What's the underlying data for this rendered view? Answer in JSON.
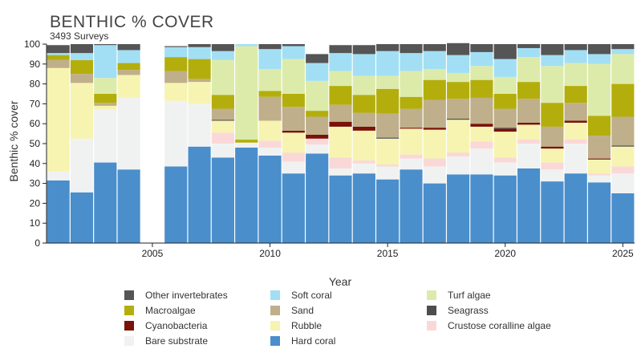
{
  "chart_data": {
    "type": "bar",
    "stacked": true,
    "title": "BENTHIC % COVER",
    "subtitle": "3493 Surveys",
    "xlabel": "Year",
    "ylabel": "Benthic % cover",
    "ylim": [
      0,
      100
    ],
    "xlim": [
      2000.5,
      2025.5
    ],
    "yticks": [
      0,
      10,
      20,
      30,
      40,
      50,
      60,
      70,
      80,
      90,
      100
    ],
    "xticks": [
      2005,
      2010,
      2015,
      2020,
      2025
    ],
    "grid": false,
    "legend_position": "bottom",
    "years": [
      2001,
      2002,
      2003,
      2004,
      2005,
      2006,
      2007,
      2008,
      2009,
      2010,
      2011,
      2012,
      2013,
      2014,
      2015,
      2016,
      2017,
      2018,
      2019,
      2020,
      2021,
      2022,
      2023,
      2024,
      2025
    ],
    "series": [
      {
        "name": "Hard coral",
        "color": "#4A8ECC",
        "values": [
          31.5,
          25.5,
          40.5,
          37,
          0,
          38.5,
          48.5,
          43,
          48,
          44,
          35,
          45,
          34,
          35,
          32,
          37,
          30,
          34.5,
          34.5,
          34,
          37.5,
          31,
          35,
          30.5,
          25
        ]
      },
      {
        "name": "Bare substrate",
        "color": "#F0F2F2",
        "values": [
          4.5,
          27,
          26.5,
          36,
          0,
          33,
          21.5,
          7,
          2.5,
          4,
          6,
          4.5,
          3.5,
          5,
          6.5,
          5.5,
          8.5,
          9,
          13,
          6.5,
          12.5,
          6,
          15,
          3.5,
          10
        ]
      },
      {
        "name": "Crustose coralline algae",
        "color": "#FBD8D8",
        "values": [
          0,
          0,
          0,
          0,
          0,
          0,
          0,
          5.5,
          0,
          3.5,
          4.5,
          3,
          5.5,
          1.5,
          1,
          2,
          4,
          2,
          3.5,
          2.5,
          2,
          3.5,
          2,
          1,
          3.5
        ]
      },
      {
        "name": "Rubble",
        "color": "#F6F4B0",
        "values": [
          52,
          28,
          2,
          11.5,
          0,
          9,
          11,
          6,
          0,
          10,
          10,
          0,
          15.5,
          15,
          13,
          13,
          14.5,
          16.5,
          7.5,
          13,
          7.5,
          7,
          8.5,
          7,
          10
        ]
      },
      {
        "name": "Cyanobacteria",
        "color": "#7A1208",
        "values": [
          0,
          0,
          0,
          0,
          0,
          0,
          0,
          0,
          0,
          0,
          1,
          2,
          2.5,
          2,
          0,
          0.5,
          1,
          0,
          1.5,
          1.5,
          1,
          1,
          1,
          0.5,
          0
        ]
      },
      {
        "name": "Seagrass",
        "color": "#4D4D4D",
        "values": [
          0,
          0,
          0,
          0,
          0,
          0,
          0,
          0.5,
          0,
          0,
          0,
          0,
          0,
          0,
          0.5,
          0,
          0,
          0.5,
          0,
          0.5,
          0,
          0,
          0,
          0,
          0.5
        ]
      },
      {
        "name": "Sand",
        "color": "#BFAF8A",
        "values": [
          4,
          4.5,
          1.5,
          2.5,
          0,
          6,
          1.5,
          5.5,
          0,
          12,
          12,
          9,
          8.5,
          7,
          12,
          9.5,
          14,
          10,
          13,
          9.5,
          12,
          10,
          9,
          11.5,
          14.5
        ]
      },
      {
        "name": "Macroalgae",
        "color": "#B3AE0C",
        "values": [
          2.5,
          7,
          4.5,
          3.5,
          0,
          7,
          10,
          7,
          1.5,
          3,
          6.5,
          3,
          9.5,
          9,
          12.5,
          6,
          10,
          8.5,
          9,
          7.5,
          8.5,
          12,
          8.5,
          10,
          16.5
        ]
      },
      {
        "name": "Turf algae",
        "color": "#DDEBAA",
        "values": [
          0,
          0,
          8,
          0,
          0,
          0,
          0,
          17.5,
          47,
          11,
          17.5,
          15,
          7.5,
          9.5,
          6.5,
          13,
          5.5,
          4.5,
          7,
          8.5,
          12.5,
          18.5,
          11.5,
          26,
          15
        ]
      },
      {
        "name": "Soft coral",
        "color": "#A2DFF5",
        "values": [
          1,
          3.5,
          16.5,
          6.5,
          0,
          5,
          6,
          4.5,
          1,
          10,
          6.5,
          9,
          9,
          11,
          12.5,
          9,
          9,
          9,
          7,
          9,
          4.5,
          5.5,
          6.5,
          5,
          2.5
        ]
      },
      {
        "name": "Other invertebrates",
        "color": "#555555",
        "values": [
          4,
          4.5,
          0.5,
          3,
          0,
          0.5,
          1.5,
          3.5,
          0,
          2.5,
          1,
          4.5,
          4,
          4.5,
          3.5,
          4.5,
          3.5,
          6,
          4,
          7.5,
          2,
          5.5,
          3,
          5,
          2.5
        ]
      }
    ],
    "legend_order": [
      "Other invertebrates",
      "Soft coral",
      "Turf algae",
      "Macroalgae",
      "Sand",
      "Seagrass",
      "Cyanobacteria",
      "Rubble",
      "Crustose coralline algae",
      "Bare substrate",
      "Hard coral"
    ]
  }
}
